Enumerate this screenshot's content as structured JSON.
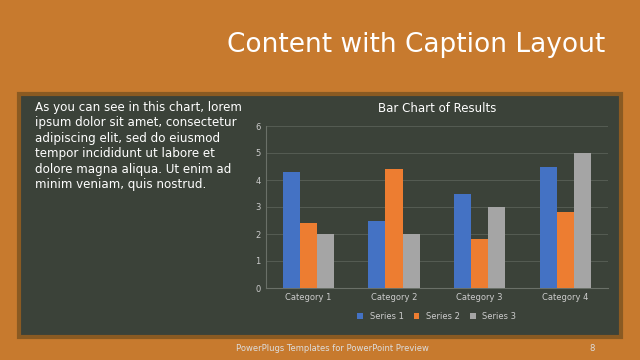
{
  "slide": {
    "title": "Content with Caption Layout",
    "caption_lines": [
      "As you can see in this chart, lorem",
      "ipsum dolor sit amet, consectetur",
      "adipiscing elit, sed do eiusmod",
      "tempor incididunt ut labore et",
      "dolore magna aliqua. Ut enim ad",
      "minim veniam, quis nostrud."
    ],
    "footer": "PowerPlugs Templates for PowerPoint Preview",
    "page": 8
  },
  "chart_data": {
    "type": "bar",
    "title": "Bar Chart of Results",
    "categories": [
      "Category 1",
      "Category 2",
      "Category 3",
      "Category 4"
    ],
    "series": [
      {
        "name": "Series 1",
        "color": "#4472c4",
        "values": [
          4.3,
          2.5,
          3.5,
          4.5
        ]
      },
      {
        "name": "Series 2",
        "color": "#ed7d31",
        "values": [
          2.4,
          4.4,
          1.8,
          2.8
        ]
      },
      {
        "name": "Series 3",
        "color": "#a5a5a5",
        "values": [
          2,
          2,
          3,
          5
        ]
      }
    ],
    "ylim": [
      0,
      6
    ],
    "yticks": [
      0,
      1,
      2,
      3,
      4,
      5,
      6
    ],
    "grid": true,
    "legend": "lower center"
  }
}
